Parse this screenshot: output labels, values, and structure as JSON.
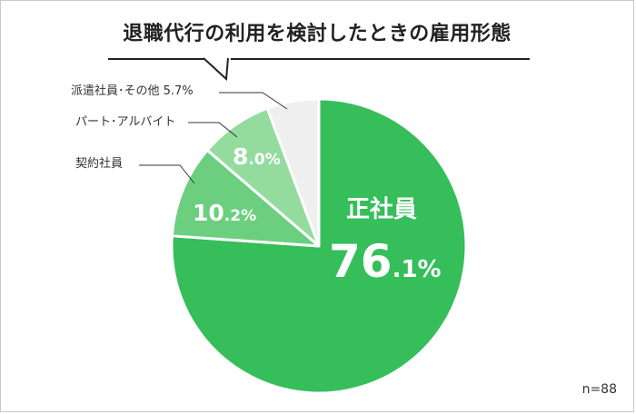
{
  "title": "退職代行の利用を検討したときの雇用形態",
  "sample_size": "n=88",
  "chart_data": {
    "type": "pie",
    "title": "退職代行の利用を検討したときの雇用形態",
    "unit": "%",
    "slices": [
      {
        "label": "正社員",
        "value": 76.1,
        "display_int": "76",
        "display_dec": ".1%",
        "color": "#35be5a",
        "label_color": "#ffffff"
      },
      {
        "label": "契約社員",
        "value": 10.2,
        "display_int": "10",
        "display_dec": ".2%",
        "color": "#6ccf7f",
        "label_color": "#ffffff"
      },
      {
        "label": "パート･アルバイト",
        "value": 8.0,
        "display_int": "8",
        "display_dec": ".0%",
        "color": "#93dc9e",
        "label_color": "#ffffff"
      },
      {
        "label": "派遣社員･その他",
        "value": 5.7,
        "display_int": "",
        "display_dec": "",
        "display_outside": "5.7%",
        "color": "#efefef",
        "label_color": "#333333"
      }
    ]
  }
}
